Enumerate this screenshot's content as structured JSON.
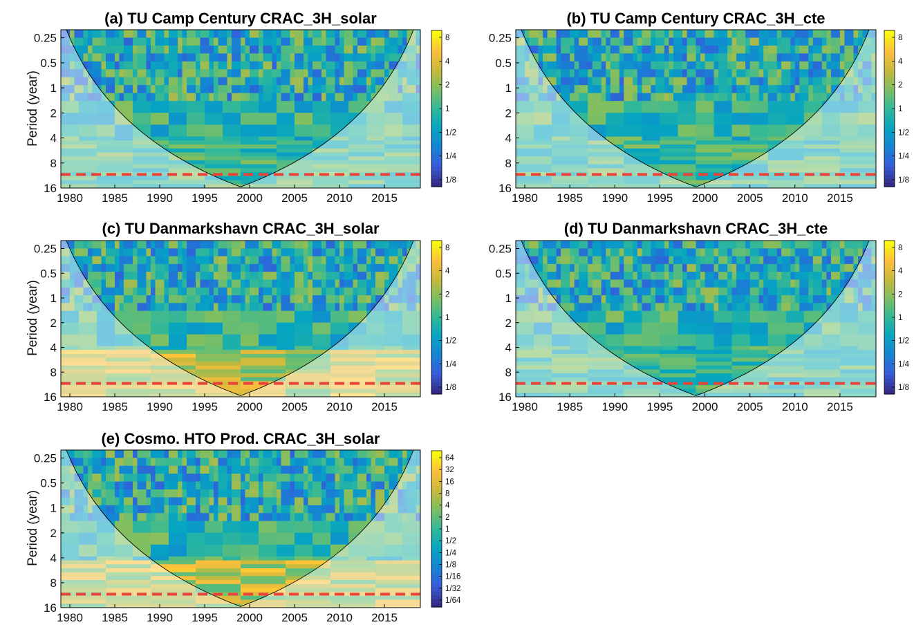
{
  "figure": {
    "ylabel": "Period (year)",
    "x_ticks": [
      "1980",
      "1985",
      "1990",
      "1995",
      "2000",
      "2005",
      "2010",
      "2015"
    ],
    "y_ticks": [
      "0.25",
      "0.5",
      "1",
      "2",
      "4",
      "8",
      "16"
    ],
    "colors": {
      "dashed_line": "#e8443a",
      "contour": "#000000",
      "gray_contour": "#808080"
    }
  },
  "chart_data": [
    {
      "type": "heatmap",
      "title": "(a) TU Camp Century CRAC_3H_solar",
      "ylabel": "Period (year)",
      "xlim": [
        1979,
        2019
      ],
      "ylim": [
        0.2,
        16
      ],
      "y_scale": "log2 (reversed)",
      "colorbar_ticks": [
        "8",
        "4",
        "2",
        "1",
        "1/2",
        "1/4",
        "1/8"
      ],
      "dashed_period": 11,
      "x_ticks": [
        1980,
        1985,
        1990,
        1995,
        2000,
        2005,
        2010,
        2015
      ],
      "y_ticks": [
        0.25,
        0.5,
        1,
        2,
        4,
        8,
        16
      ]
    },
    {
      "type": "heatmap",
      "title": "(b) TU Camp Century CRAC_3H_cte",
      "ylabel": "",
      "xlim": [
        1979,
        2019
      ],
      "ylim": [
        0.2,
        16
      ],
      "y_scale": "log2 (reversed)",
      "colorbar_ticks": [
        "8",
        "4",
        "2",
        "1",
        "1/2",
        "1/4",
        "1/8"
      ],
      "dashed_period": 11,
      "x_ticks": [
        1980,
        1985,
        1990,
        1995,
        2000,
        2005,
        2010,
        2015
      ],
      "y_ticks": [
        0.25,
        0.5,
        1,
        2,
        4,
        8,
        16
      ]
    },
    {
      "type": "heatmap",
      "title": "(c) TU Danmarkshavn CRAC_3H_solar",
      "ylabel": "Period (year)",
      "xlim": [
        1979,
        2019
      ],
      "ylim": [
        0.2,
        16
      ],
      "y_scale": "log2 (reversed)",
      "colorbar_ticks": [
        "8",
        "4",
        "2",
        "1",
        "1/2",
        "1/4",
        "1/8"
      ],
      "dashed_period": 11,
      "x_ticks": [
        1980,
        1985,
        1990,
        1995,
        2000,
        2005,
        2010,
        2015
      ],
      "y_ticks": [
        0.25,
        0.5,
        1,
        2,
        4,
        8,
        16
      ]
    },
    {
      "type": "heatmap",
      "title": "(d) TU Danmarkshavn CRAC_3H_cte",
      "ylabel": "",
      "xlim": [
        1979,
        2019
      ],
      "ylim": [
        0.2,
        16
      ],
      "y_scale": "log2 (reversed)",
      "colorbar_ticks": [
        "8",
        "4",
        "2",
        "1",
        "1/2",
        "1/4",
        "1/8"
      ],
      "dashed_period": 11,
      "x_ticks": [
        1980,
        1985,
        1990,
        1995,
        2000,
        2005,
        2010,
        2015
      ],
      "y_ticks": [
        0.25,
        0.5,
        1,
        2,
        4,
        8,
        16
      ]
    },
    {
      "type": "heatmap",
      "title": "(e) Cosmo. HTO Prod. CRAC_3H_solar",
      "ylabel": "Period (year)",
      "xlim": [
        1979,
        2019
      ],
      "ylim": [
        0.2,
        16
      ],
      "y_scale": "log2 (reversed)",
      "colorbar_ticks": [
        "64",
        "32",
        "16",
        "8",
        "4",
        "2",
        "1",
        "1/2",
        "1/4",
        "1/8",
        "1/16",
        "1/32",
        "1/64"
      ],
      "dashed_period": 11,
      "x_ticks": [
        1980,
        1985,
        1990,
        1995,
        2000,
        2005,
        2010,
        2015
      ],
      "y_ticks": [
        0.25,
        0.5,
        1,
        2,
        4,
        8,
        16
      ]
    }
  ]
}
